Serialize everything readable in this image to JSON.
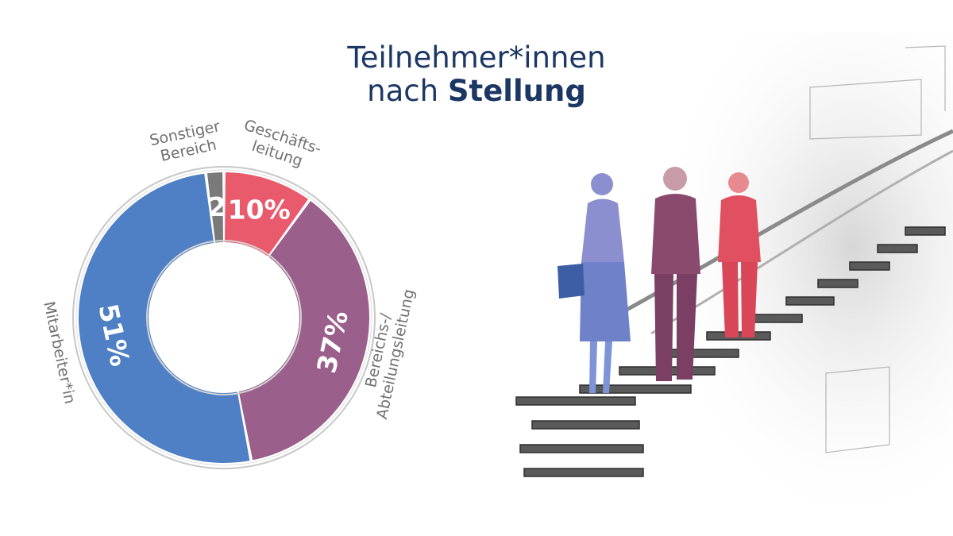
{
  "title": {
    "line1": "Teilnehmer*innen",
    "line2_regular": "nach",
    "line2_bold": "Stellung"
  },
  "colors": {
    "title": "#1c3764",
    "mitarbeiter": "#4f7fc4",
    "bereichsleitung": "#9a5f8a",
    "geschaeftsleitung": "#ea5a6d",
    "sonstiger": "#7a7a7a",
    "label_text": "#707070"
  },
  "chart_data": {
    "type": "pie",
    "variant": "donut",
    "unit": "%",
    "slices": [
      {
        "label": "Geschäfts-leitung",
        "label_lines": [
          "Geschäfts-",
          "leitung"
        ],
        "value": 10,
        "value_label": "10%",
        "color": "#ea5a6d"
      },
      {
        "label": "Bereichs-/Abteilungsleitung",
        "label_lines": [
          "Bereichs-/",
          "Abteilungsleitung"
        ],
        "value": 37,
        "value_label": "37%",
        "color": "#9a5f8a"
      },
      {
        "label": "Mitarbeiter*in",
        "label_lines": [
          "Mitarbeiter*in"
        ],
        "value": 51,
        "value_label": "51%",
        "color": "#4f7fc4"
      },
      {
        "label": "Sonstiger Bereich",
        "label_lines": [
          "Sonstiger",
          "Bereich"
        ],
        "value": 2,
        "value_label": "2",
        "color": "#7a7a7a"
      }
    ]
  },
  "illustration": {
    "subject": "three people talking on a staircase",
    "figure_colors": [
      "#8b8fd0",
      "#8a4a6e",
      "#e05060"
    ]
  }
}
